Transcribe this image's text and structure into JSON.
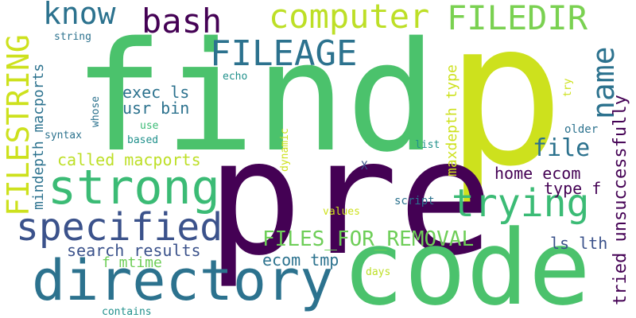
{
  "words": {
    "find": {
      "text": "find",
      "color": "#4bc26c"
    },
    "p": {
      "text": "p",
      "color": "#cde11d"
    },
    "pre": {
      "text": "pre",
      "color": "#440154"
    },
    "code": {
      "text": "code",
      "color": "#4bc26c"
    },
    "directory": {
      "text": "directory",
      "color": "#2c728e"
    },
    "strong": {
      "text": "strong",
      "color": "#3bbb75"
    },
    "specified": {
      "text": "specified",
      "color": "#3b528b"
    },
    "trying": {
      "text": "trying",
      "color": "#3bbb75"
    },
    "computer": {
      "text": "computer",
      "color": "#bddf26"
    },
    "filedir": {
      "text": "FILEDIR",
      "color": "#7ad151"
    },
    "fileage": {
      "text": "FILEAGE",
      "color": "#2c728e"
    },
    "know": {
      "text": "know",
      "color": "#2c728e"
    },
    "bash": {
      "text": "bash",
      "color": "#440154"
    },
    "filestring": {
      "text": "FILESTRING",
      "color": "#cde11d"
    },
    "name": {
      "text": "name",
      "color": "#2c728e"
    },
    "file": {
      "text": "file",
      "color": "#2c728e"
    },
    "files_for_removal": {
      "text": "FILES_FOR_REMOVAL",
      "color": "#6ece58"
    },
    "called_macports": {
      "text": "called macports",
      "color": "#bddf26"
    },
    "search_results": {
      "text": "search results",
      "color": "#3b528b"
    },
    "home_ecom": {
      "text": "home ecom",
      "color": "#440154"
    },
    "exec_ls": {
      "text": "exec ls",
      "color": "#2c728e"
    },
    "usr_bin": {
      "text": "usr bin",
      "color": "#2c728e"
    },
    "ecom_tmp": {
      "text": "ecom tmp",
      "color": "#2c728e"
    },
    "type_f": {
      "text": "type f",
      "color": "#440154"
    },
    "ls_lth": {
      "text": "ls lth",
      "color": "#3b528b"
    },
    "f_mtime": {
      "text": "f mtime",
      "color": "#6ece58"
    },
    "maxdepth_type": {
      "text": "maxdepth type",
      "color": "#cde11d"
    },
    "mindepth_macports": {
      "text": "mindepth macports",
      "color": "#2c728e"
    },
    "tried_unsuccessfully": {
      "text": "tried unsuccessfully",
      "color": "#440154"
    },
    "string": {
      "text": "string",
      "color": "#2c728e"
    },
    "echo": {
      "text": "echo",
      "color": "#21918c"
    },
    "whose": {
      "text": "whose",
      "color": "#2c728e"
    },
    "syntax": {
      "text": "syntax",
      "color": "#2c728e"
    },
    "use": {
      "text": "use",
      "color": "#3bbb75"
    },
    "based": {
      "text": "based",
      "color": "#21918c"
    },
    "dynamic": {
      "text": "dynamic",
      "color": "#cde11d"
    },
    "list": {
      "text": "list",
      "color": "#21918c"
    },
    "older": {
      "text": "older",
      "color": "#2c728e"
    },
    "try": {
      "text": "try",
      "color": "#cde11d"
    },
    "x": {
      "text": "X",
      "color": "#3b528b"
    },
    "script": {
      "text": "script",
      "color": "#2c728e"
    },
    "values": {
      "text": "values",
      "color": "#cde11d"
    },
    "days": {
      "text": "days",
      "color": "#bddf26"
    },
    "contains": {
      "text": "contains",
      "color": "#21918c"
    }
  }
}
